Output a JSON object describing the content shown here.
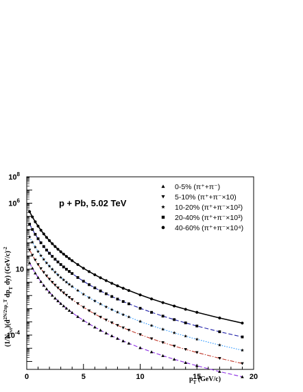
{
  "chart_data": {
    "type": "scatter",
    "annotation": "p + Pb, 5.02 TeV",
    "xlabel": "p_T (GeV/c)",
    "ylabel": "(1/N_evt)(d^2N/2πp_T dp_T dy) (GeV/c)^-2",
    "xlim": [
      0,
      20
    ],
    "ylim_log10": [
      -6.6,
      8
    ],
    "y_scale": "log",
    "x_ticks": [
      0,
      5,
      10,
      15,
      20
    ],
    "y_ticks": [
      "10^-4",
      "10",
      "10^6",
      "10^8"
    ],
    "legend_position": "top-right",
    "x": [
      0.25,
      0.5,
      0.75,
      1.0,
      1.25,
      1.5,
      1.75,
      2.0,
      2.25,
      2.5,
      2.75,
      3.0,
      3.25,
      3.5,
      3.75,
      4.0,
      4.5,
      5.0,
      5.5,
      6.0,
      6.5,
      7.0,
      7.5,
      8.0,
      8.5,
      9.0,
      10.0,
      11.0,
      12.0,
      13.0,
      14.0,
      15.0,
      17.0,
      19.0
    ],
    "series": [
      {
        "name": "0-5% (π⁺+π⁻)",
        "marker": "triangle-up",
        "line_color": "#8a2be2",
        "line_style": "dashed",
        "values": [
          29.4,
          11.7,
          5.0,
          2.31,
          1.13,
          0.584,
          0.316,
          0.178,
          0.104,
          0.0627,
          0.0389,
          0.0248,
          0.0162,
          0.0108,
          0.00735,
          0.00508,
          0.0025,
          0.0013,
          0.000709,
          0.000401,
          0.000234,
          0.000141,
          8.72e-05,
          5.53e-05,
          3.59e-05,
          2.38e-05,
          1.09e-05,
          5.31e-06,
          2.73e-06,
          1.47e-06,
          8.21e-07,
          4.74e-07,
          1.71e-07,
          6.86e-08
        ]
      },
      {
        "name": "5-10% (π⁺+π⁻×10)",
        "marker": "triangle-down",
        "line_color": "#c0392b",
        "line_style": "dash-dot",
        "values": [
          286,
          114,
          48.7,
          22.5,
          11.0,
          5.68,
          3.08,
          1.74,
          1.02,
          0.612,
          0.38,
          0.242,
          0.158,
          0.106,
          0.072,
          0.0498,
          0.0246,
          0.0128,
          0.00701,
          0.00397,
          0.00232,
          0.0014,
          0.000867,
          0.00055,
          0.000358,
          0.000238,
          0.000109,
          5.31e-05,
          2.74e-05,
          1.48e-05,
          8.28e-06,
          4.8e-06,
          1.74e-06,
          7e-07
        ]
      },
      {
        "name": "10-20% (π⁺+π⁻×10²)",
        "marker": "star",
        "line_color": "#1e90ff",
        "line_style": "dotted",
        "values": [
          2750,
          1090,
          468,
          216,
          106,
          55.0,
          29.8,
          16.8,
          9.84,
          5.93,
          3.68,
          2.35,
          1.54,
          1.03,
          0.701,
          0.485,
          0.24,
          0.125,
          0.0686,
          0.0389,
          0.0228,
          0.0138,
          0.00854,
          0.00543,
          0.00354,
          0.00236,
          0.00108,
          0.000528,
          0.000273,
          0.000148,
          8.28e-05,
          4.8e-05,
          1.75e-05,
          7.06e-06
        ]
      },
      {
        "name": "20-40% (π⁺+π⁻×10³)",
        "marker": "square",
        "line_color": "#1a1aa6",
        "line_style": "dashed",
        "values": [
          25700,
          10200,
          4380,
          2030,
          998,
          518,
          281,
          159,
          93.2,
          56.3,
          35.0,
          22.4,
          14.7,
          9.85,
          6.72,
          4.66,
          2.32,
          1.21,
          0.667,
          0.38,
          0.223,
          0.136,
          0.0842,
          0.0537,
          0.0351,
          0.0235,
          0.0108,
          0.0053,
          0.00275,
          0.0015,
          0.00084,
          0.000489,
          0.000179,
          7.25e-05
        ]
      },
      {
        "name": "40-60% (π⁺+π⁻×10⁴)",
        "marker": "circle",
        "line_color": "#000000",
        "line_style": "solid",
        "values": [
          228000,
          90800,
          39000,
          18200,
          8970,
          4680,
          2550,
          1450,
          853,
          518,
          323,
          208,
          137,
          92.2,
          63.2,
          44.0,
          22.1,
          11.7,
          6.49,
          3.73,
          2.21,
          1.35,
          0.843,
          0.541,
          0.356,
          0.24,
          0.112,
          0.0555,
          0.0291,
          0.016,
          0.00906,
          0.00532,
          0.00198,
          0.000814
        ]
      }
    ]
  }
}
